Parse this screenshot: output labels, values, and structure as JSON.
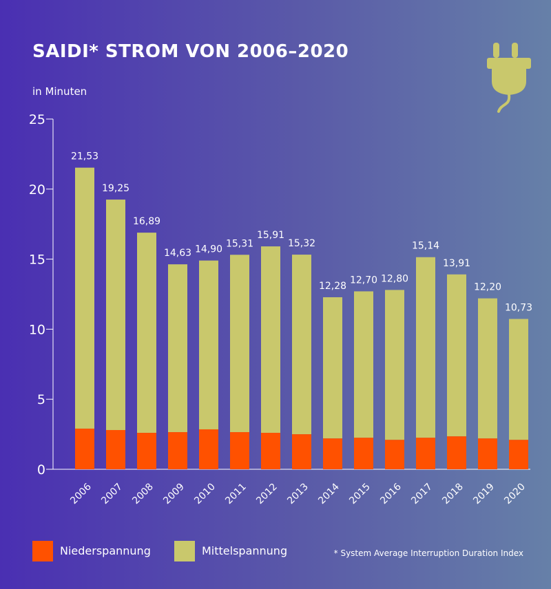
{
  "title": "SAIDI* STROM VON 2006–2020",
  "unit_label": "in Minuten",
  "footnote": "* System Average Interruption Duration Index",
  "icon": "plug-icon",
  "colors": {
    "niederspannung": "#ff5100",
    "mittelspannung": "#c9c86c",
    "axis": "#ffffff"
  },
  "legend": [
    {
      "label": "Niederspannung",
      "color": "#ff5100"
    },
    {
      "label": "Mittelspannung",
      "color": "#c9c86c"
    }
  ],
  "chart_data": {
    "type": "bar",
    "stacked": true,
    "categories": [
      "2006",
      "2007",
      "2008",
      "2009",
      "2010",
      "2011",
      "2012",
      "2013",
      "2014",
      "2015",
      "2016",
      "2017",
      "2018",
      "2019",
      "2020"
    ],
    "series": [
      {
        "name": "Niederspannung",
        "values": [
          2.9,
          2.8,
          2.6,
          2.65,
          2.85,
          2.65,
          2.6,
          2.5,
          2.2,
          2.25,
          2.1,
          2.25,
          2.35,
          2.2,
          2.1
        ]
      },
      {
        "name": "Mittelspannung",
        "values": [
          18.63,
          16.45,
          14.29,
          11.98,
          12.05,
          12.66,
          13.31,
          12.82,
          10.08,
          10.45,
          10.7,
          12.89,
          11.56,
          10.0,
          8.63
        ]
      }
    ],
    "totals": [
      21.53,
      19.25,
      16.89,
      14.63,
      14.9,
      15.31,
      15.91,
      15.32,
      12.28,
      12.7,
      12.8,
      15.14,
      13.91,
      12.2,
      10.73
    ],
    "total_labels": [
      "21,53",
      "19,25",
      "16,89",
      "14,63",
      "14,90",
      "15,31",
      "15,91",
      "15,32",
      "12,28",
      "12,70",
      "12,80",
      "15,14",
      "13,91",
      "12,20",
      "10,73"
    ],
    "yticks": [
      0,
      5,
      10,
      15,
      20,
      25
    ],
    "ylim": [
      0,
      25
    ],
    "grid": false,
    "legend_position": "bottom-left"
  }
}
